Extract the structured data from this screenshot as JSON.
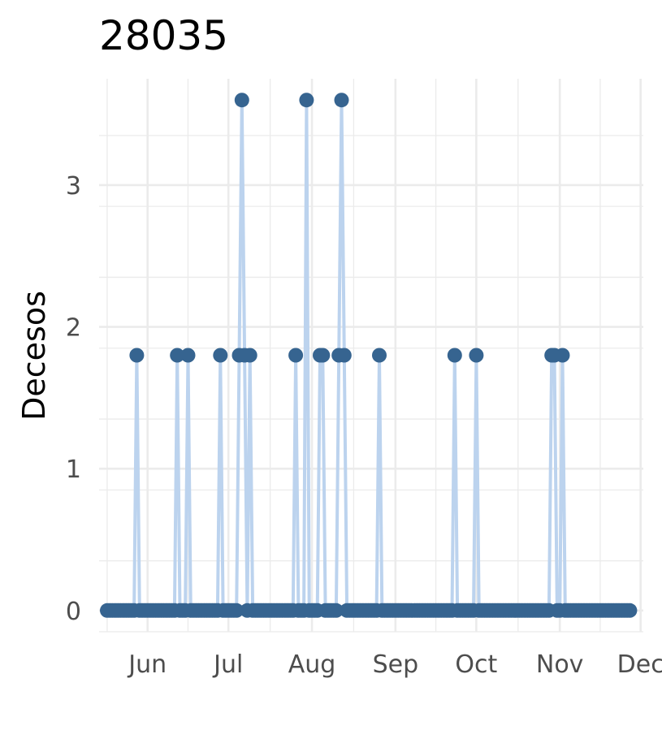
{
  "chart_data": {
    "type": "line",
    "title": "28035",
    "xlabel": "",
    "ylabel": "Decesos",
    "x_tick_labels": [
      "Jun",
      "Jul",
      "Aug",
      "Sep",
      "Oct",
      "Nov",
      "Dec"
    ],
    "x_tick_dates": [
      "2020-06-01",
      "2020-07-01",
      "2020-08-01",
      "2020-09-01",
      "2020-10-01",
      "2020-11-01",
      "2020-12-01"
    ],
    "y_tick_labels": [
      "0",
      "1",
      "2",
      "3"
    ],
    "y_ticks": [
      0,
      1,
      2,
      3
    ],
    "xlim": [
      "2020-05-14",
      "2020-12-02"
    ],
    "ylim": [
      -0.15,
      3.75
    ],
    "grid": true,
    "legend": "none",
    "colors": {
      "line": "#bcd3ee",
      "point": "#366490",
      "grid": "#ebebeb"
    },
    "x_start": "2020-05-17",
    "x_end": "2020-11-27",
    "nonzero": [
      {
        "date": "2020-05-28",
        "value": 1.8
      },
      {
        "date": "2020-06-12",
        "value": 1.8
      },
      {
        "date": "2020-06-16",
        "value": 1.8
      },
      {
        "date": "2020-06-28",
        "value": 1.8
      },
      {
        "date": "2020-07-05",
        "value": 1.8
      },
      {
        "date": "2020-07-06",
        "value": 3.6
      },
      {
        "date": "2020-07-07",
        "value": 1.8
      },
      {
        "date": "2020-07-09",
        "value": 1.8
      },
      {
        "date": "2020-07-26",
        "value": 1.8
      },
      {
        "date": "2020-07-30",
        "value": 3.6
      },
      {
        "date": "2020-08-04",
        "value": 1.8
      },
      {
        "date": "2020-08-05",
        "value": 1.8
      },
      {
        "date": "2020-08-11",
        "value": 1.8
      },
      {
        "date": "2020-08-12",
        "value": 3.6
      },
      {
        "date": "2020-08-13",
        "value": 1.8
      },
      {
        "date": "2020-08-26",
        "value": 1.8
      },
      {
        "date": "2020-09-23",
        "value": 1.8
      },
      {
        "date": "2020-10-01",
        "value": 1.8
      },
      {
        "date": "2020-10-29",
        "value": 1.8
      },
      {
        "date": "2020-10-30",
        "value": 1.8
      },
      {
        "date": "2020-11-02",
        "value": 1.8
      }
    ]
  }
}
